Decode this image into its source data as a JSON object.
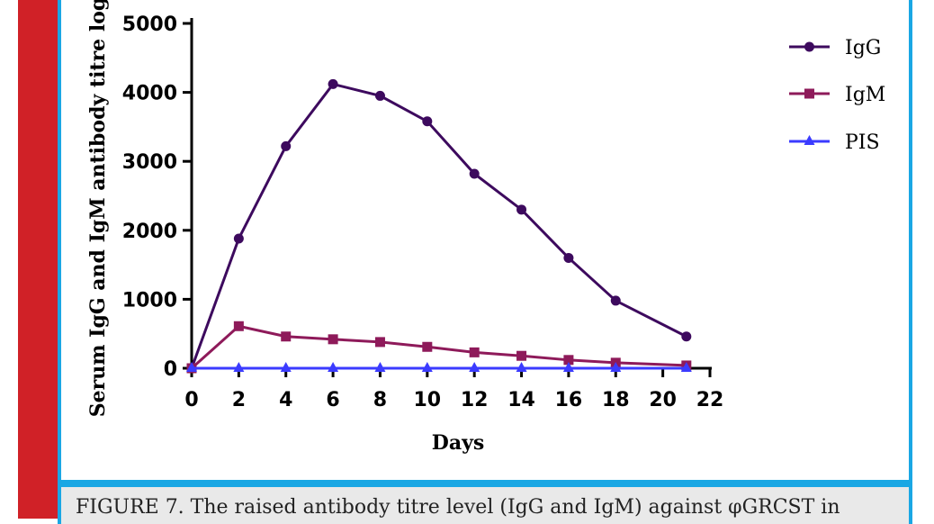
{
  "chart_data": {
    "type": "line",
    "xlabel": "Days",
    "ylabel": "Serum IgG and IgM antibody titre log",
    "xlim": [
      0,
      22
    ],
    "ylim": [
      0,
      5000
    ],
    "xticks": [
      0,
      2,
      4,
      6,
      8,
      10,
      12,
      14,
      16,
      18,
      20,
      22
    ],
    "yticks": [
      0,
      1000,
      2000,
      3000,
      4000,
      5000
    ],
    "x": [
      0,
      2,
      4,
      6,
      8,
      10,
      12,
      14,
      16,
      18,
      21
    ],
    "legend_position": "top-right",
    "grid": false,
    "series": [
      {
        "name": "IgG",
        "color": "#3d0a5e",
        "marker": "circle",
        "values": [
          0,
          1880,
          3220,
          4120,
          3950,
          3580,
          2820,
          2300,
          1600,
          980,
          460
        ]
      },
      {
        "name": "IgM",
        "color": "#8e1a5a",
        "marker": "square",
        "values": [
          0,
          610,
          460,
          420,
          380,
          310,
          230,
          180,
          120,
          80,
          40
        ]
      },
      {
        "name": "PIS",
        "color": "#3b3bff",
        "marker": "triangle",
        "values": [
          0,
          0,
          0,
          0,
          0,
          0,
          0,
          0,
          0,
          0,
          0
        ]
      }
    ]
  },
  "caption": "FIGURE 7. The raised antibody titre level (IgG and IgM) against φGRCST in"
}
